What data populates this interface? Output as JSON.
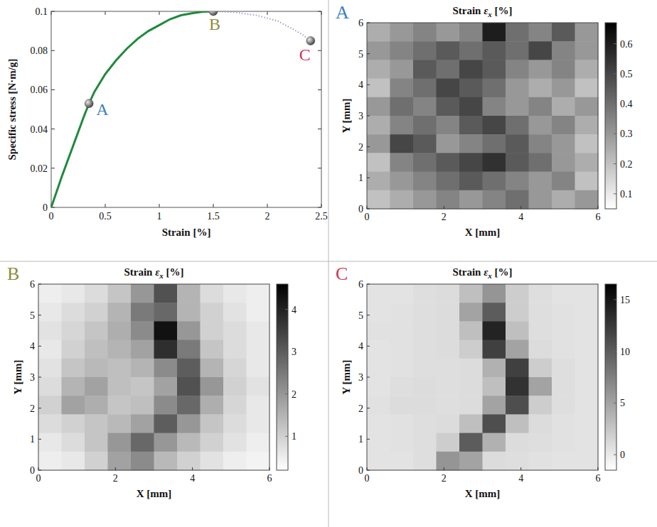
{
  "chart_data": [
    {
      "type": "line",
      "xlabel": "Strain [%]",
      "ylabel": "Specific stress [N·m/g]",
      "xlim": [
        0,
        2.5
      ],
      "xticks": [
        0,
        0.5,
        1,
        1.5,
        2,
        2.5
      ],
      "ylim": [
        0,
        0.1
      ],
      "yticks": [
        0,
        0.02,
        0.04,
        0.06,
        0.08,
        0.1
      ],
      "grid": false,
      "series": [
        {
          "color": "#1f8a3c",
          "line_style": "solid",
          "x": [
            0,
            0.1,
            0.2,
            0.3,
            0.35,
            0.4,
            0.5,
            0.6,
            0.7,
            0.8,
            0.9,
            1.0,
            1.1,
            1.2,
            1.3,
            1.4,
            1.5
          ],
          "values": [
            0,
            0.016,
            0.031,
            0.046,
            0.053,
            0.059,
            0.068,
            0.075,
            0.081,
            0.086,
            0.09,
            0.093,
            0.096,
            0.098,
            0.099,
            0.0998,
            0.1
          ]
        },
        {
          "color": "#9aa6c8",
          "line_style": "dotted",
          "x": [
            1.5,
            1.7,
            1.9,
            2.1,
            2.3,
            2.4
          ],
          "values": [
            0.1,
            0.0995,
            0.098,
            0.095,
            0.089,
            0.085
          ]
        }
      ],
      "points": {
        "labels": [
          "A",
          "B",
          "C"
        ],
        "x": [
          0.35,
          1.5,
          2.4
        ],
        "values": [
          0.053,
          0.1,
          0.085
        ],
        "colors": [
          "#3a7fc1",
          "#8c8c3c",
          "#d0335a"
        ]
      }
    },
    {
      "type": "heatmap",
      "panel": "A",
      "panel_color": "#3a7fc1",
      "title_label": "Strain",
      "title_symbol": "ε",
      "title_subscript": "x",
      "title_unit": "[%]",
      "xlabel": "X [mm]",
      "ylabel": "Y [mm]",
      "xlim": [
        0,
        6
      ],
      "xticks": [
        0,
        2,
        4,
        6
      ],
      "ylim": [
        0,
        6
      ],
      "yticks": [
        0,
        1,
        2,
        3,
        4,
        5,
        6
      ],
      "colorbar_range": [
        0.05,
        0.67
      ],
      "colorbar_ticks": [
        0.1,
        0.2,
        0.3,
        0.4,
        0.5,
        0.6
      ],
      "cells": [
        [
          0.25,
          0.3,
          0.35,
          0.3,
          0.35,
          0.6,
          0.4,
          0.35,
          0.45,
          0.3
        ],
        [
          0.3,
          0.35,
          0.4,
          0.45,
          0.4,
          0.45,
          0.4,
          0.5,
          0.35,
          0.3
        ],
        [
          0.25,
          0.3,
          0.45,
          0.4,
          0.5,
          0.45,
          0.35,
          0.3,
          0.35,
          0.25
        ],
        [
          0.2,
          0.35,
          0.4,
          0.5,
          0.45,
          0.4,
          0.3,
          0.25,
          0.3,
          0.2
        ],
        [
          0.3,
          0.4,
          0.35,
          0.45,
          0.5,
          0.35,
          0.3,
          0.35,
          0.25,
          0.3
        ],
        [
          0.25,
          0.35,
          0.4,
          0.35,
          0.45,
          0.5,
          0.4,
          0.3,
          0.35,
          0.25
        ],
        [
          0.3,
          0.5,
          0.45,
          0.3,
          0.35,
          0.4,
          0.45,
          0.35,
          0.3,
          0.2
        ],
        [
          0.2,
          0.35,
          0.4,
          0.45,
          0.5,
          0.55,
          0.45,
          0.4,
          0.3,
          0.25
        ],
        [
          0.25,
          0.3,
          0.35,
          0.4,
          0.45,
          0.4,
          0.35,
          0.3,
          0.35,
          0.2
        ],
        [
          0.2,
          0.25,
          0.3,
          0.35,
          0.3,
          0.35,
          0.4,
          0.3,
          0.25,
          0.3
        ]
      ]
    },
    {
      "type": "heatmap",
      "panel": "B",
      "panel_color": "#8c8c3c",
      "title_label": "Strain",
      "title_symbol": "ε",
      "title_subscript": "x",
      "title_unit": "[%]",
      "xlabel": "X [mm]",
      "ylabel": "Y [mm]",
      "xlim": [
        0,
        6
      ],
      "xticks": [
        0,
        2,
        4,
        6
      ],
      "ylim": [
        0,
        6
      ],
      "yticks": [
        0,
        1,
        2,
        3,
        4,
        5,
        6
      ],
      "colorbar_range": [
        0.2,
        4.6
      ],
      "colorbar_ticks": [
        1,
        2,
        3,
        4
      ],
      "cells": [
        [
          0.5,
          0.6,
          0.8,
          1.2,
          2.0,
          3.2,
          1.5,
          0.8,
          0.6,
          0.5
        ],
        [
          0.6,
          0.8,
          1.0,
          1.5,
          2.5,
          2.8,
          1.5,
          1.0,
          0.7,
          0.5
        ],
        [
          0.7,
          0.9,
          1.2,
          1.6,
          2.2,
          4.3,
          2.0,
          1.0,
          0.8,
          0.6
        ],
        [
          0.6,
          1.0,
          1.3,
          1.5,
          1.8,
          3.8,
          2.5,
          1.2,
          0.8,
          0.6
        ],
        [
          0.7,
          1.2,
          1.4,
          1.3,
          1.5,
          2.2,
          3.0,
          1.5,
          0.9,
          0.6
        ],
        [
          0.8,
          1.5,
          1.8,
          1.3,
          1.2,
          1.8,
          3.2,
          2.0,
          1.0,
          0.7
        ],
        [
          1.0,
          1.8,
          1.6,
          1.2,
          1.3,
          2.2,
          2.8,
          1.6,
          0.9,
          0.6
        ],
        [
          0.8,
          1.0,
          1.2,
          1.4,
          1.8,
          3.0,
          2.0,
          1.2,
          0.8,
          0.6
        ],
        [
          0.6,
          0.8,
          1.2,
          2.0,
          2.8,
          2.0,
          1.4,
          1.0,
          0.7,
          0.5
        ],
        [
          0.5,
          0.6,
          1.0,
          1.8,
          2.2,
          1.4,
          1.0,
          0.7,
          0.5,
          0.4
        ]
      ]
    },
    {
      "type": "heatmap",
      "panel": "C",
      "panel_color": "#d0335a",
      "title_label": "Strain",
      "title_symbol": "ε",
      "title_subscript": "x",
      "title_unit": "[%]",
      "xlabel": "X [mm]",
      "ylabel": "Y [mm]",
      "xlim": [
        0,
        6
      ],
      "xticks": [
        0,
        2,
        4,
        6
      ],
      "ylim": [
        0,
        6
      ],
      "yticks": [
        0,
        1,
        2,
        3,
        4,
        5,
        6
      ],
      "colorbar_range": [
        -1.5,
        16.5
      ],
      "colorbar_ticks": [
        0,
        5,
        10,
        15
      ],
      "cells": [
        [
          0.5,
          0.5,
          0.8,
          1.0,
          3.0,
          6.0,
          2.0,
          0.8,
          0.5,
          0.5
        ],
        [
          0.5,
          0.6,
          0.8,
          1.0,
          5.0,
          10.0,
          2.0,
          0.8,
          0.6,
          0.5
        ],
        [
          0.6,
          0.6,
          0.8,
          1.0,
          3.0,
          14.0,
          3.0,
          0.8,
          0.6,
          0.5
        ],
        [
          0.5,
          0.6,
          0.8,
          1.0,
          2.0,
          12.0,
          5.0,
          1.0,
          0.6,
          0.5
        ],
        [
          0.5,
          0.6,
          0.8,
          0.8,
          1.0,
          4.0,
          12.0,
          2.0,
          0.8,
          0.5
        ],
        [
          0.5,
          0.8,
          1.0,
          0.8,
          1.0,
          3.0,
          13.0,
          5.0,
          0.8,
          0.5
        ],
        [
          0.6,
          1.0,
          1.0,
          0.8,
          1.0,
          5.0,
          11.0,
          2.0,
          0.8,
          0.5
        ],
        [
          0.5,
          0.6,
          0.8,
          1.0,
          3.0,
          11.0,
          3.0,
          1.0,
          0.6,
          0.5
        ],
        [
          0.5,
          0.6,
          0.8,
          2.0,
          10.0,
          4.0,
          1.0,
          0.8,
          0.6,
          0.5
        ],
        [
          0.5,
          0.5,
          0.8,
          6.0,
          5.0,
          1.0,
          0.8,
          0.6,
          0.5,
          0.5
        ]
      ]
    }
  ]
}
